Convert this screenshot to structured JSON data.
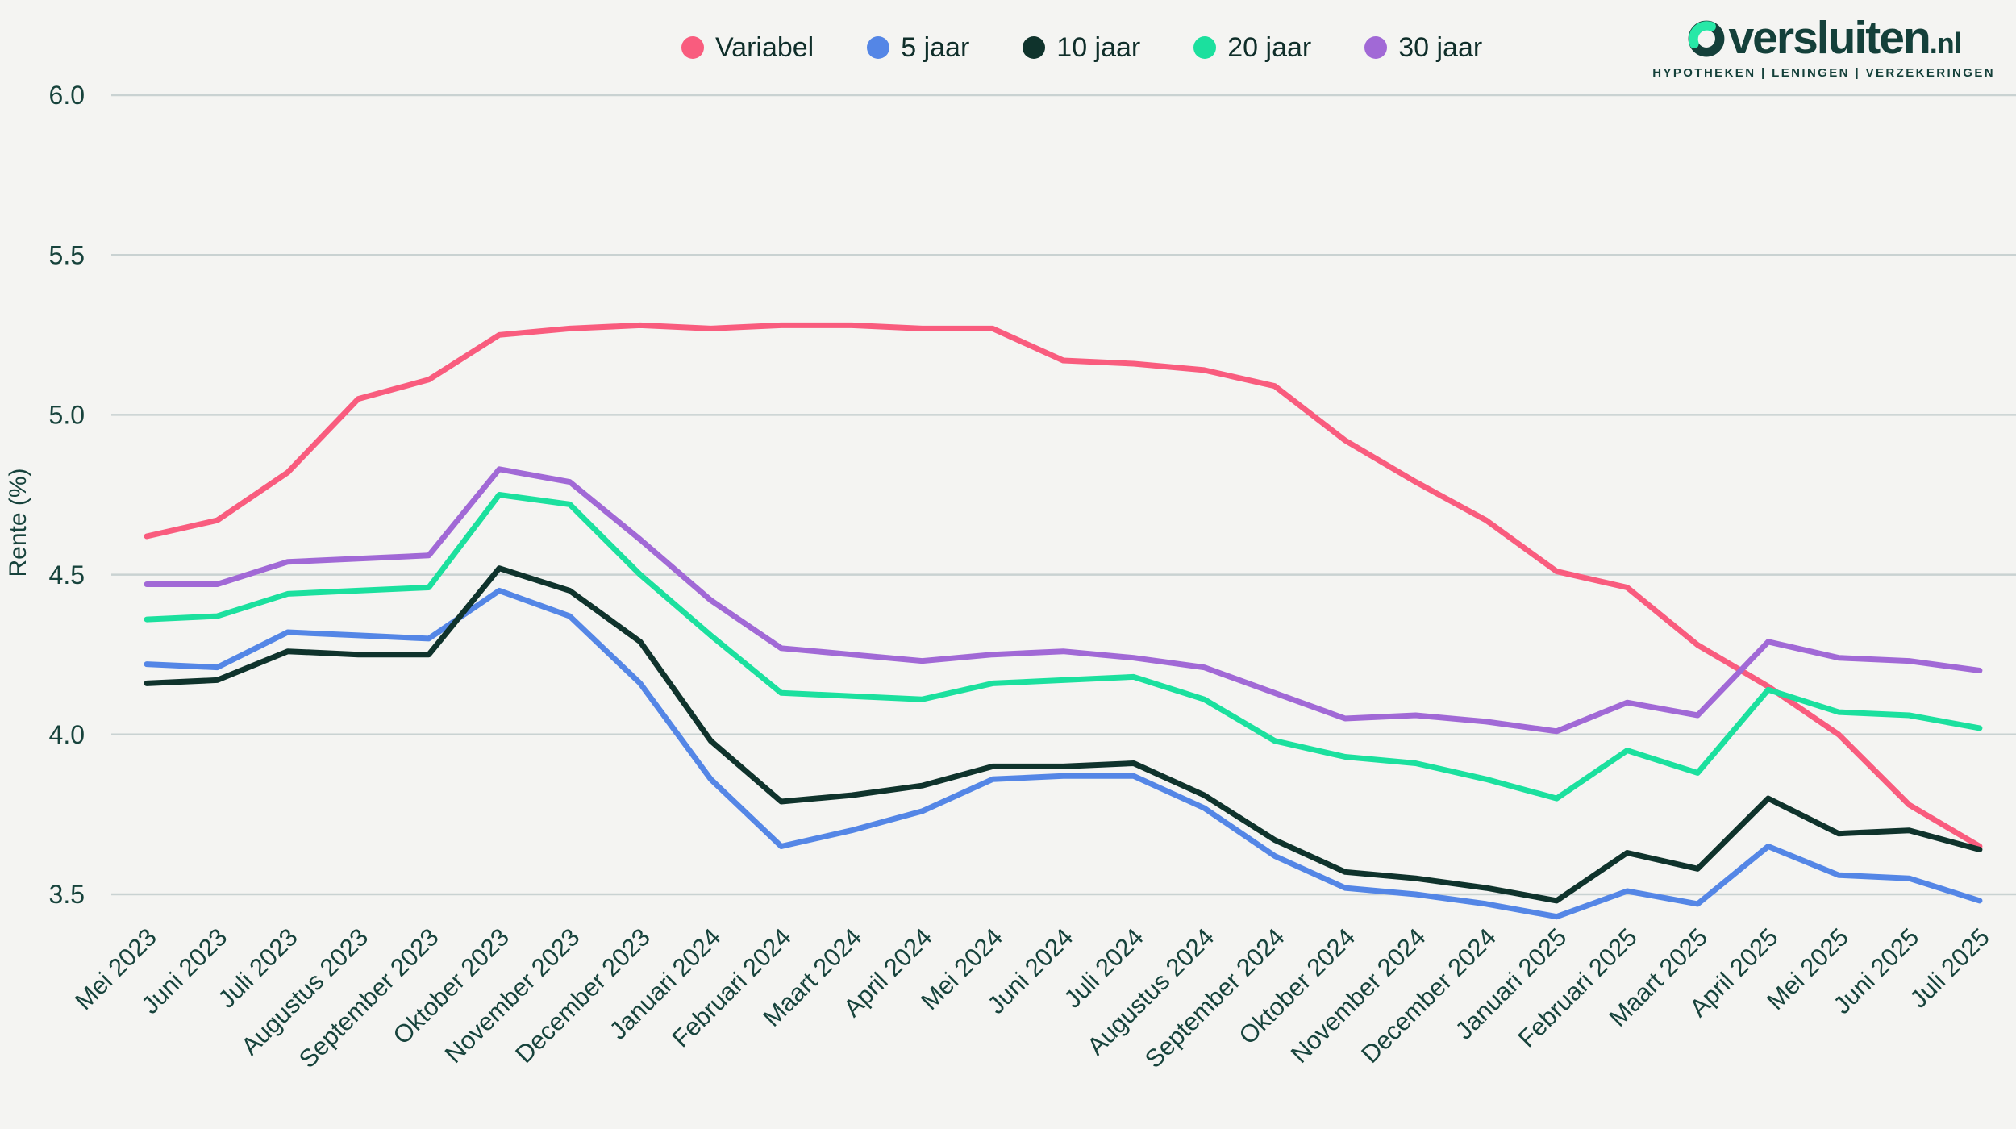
{
  "logo": {
    "brand": "versluiten",
    "tld": ".nl",
    "tagline": "HYPOTHEKEN | LENINGEN | VERZEKERINGEN",
    "mark_dark": "#14403A",
    "mark_green": "#27E8A7"
  },
  "chart_data": {
    "type": "line",
    "title": "",
    "xlabel": "",
    "ylabel": "Rente (%)",
    "ylim": [
      3.3,
      6.05
    ],
    "yticks": [
      "6.0",
      "5.5",
      "5.0",
      "4.5",
      "4.0",
      "3.5"
    ],
    "ytick_values": [
      6.0,
      5.5,
      5.0,
      4.5,
      4.0,
      3.5
    ],
    "grid": true,
    "legend_position": "top-center",
    "background": "#F4F4F2",
    "gridline_color": "#C9D2D2",
    "categories": [
      "Mei 2023",
      "Juni 2023",
      "Juli 2023",
      "Augustus 2023",
      "September 2023",
      "Oktober 2023",
      "November 2023",
      "December 2023",
      "Januari 2024",
      "Februari 2024",
      "Maart 2024",
      "April 2024",
      "Mei 2024",
      "Juni 2024",
      "Juli 2024",
      "Augustus 2024",
      "September 2024",
      "Oktober 2024",
      "November 2024",
      "December 2024",
      "Januari 2025",
      "Februari 2025",
      "Maart 2025",
      "April 2025",
      "Mei 2025",
      "Juni 2025",
      "Juli 2025"
    ],
    "series": [
      {
        "name": "Variabel",
        "color": "#F95C7E",
        "values": [
          4.62,
          4.67,
          4.82,
          5.05,
          5.11,
          5.25,
          5.27,
          5.28,
          5.27,
          5.28,
          5.28,
          5.27,
          5.27,
          5.17,
          5.16,
          5.14,
          5.09,
          4.92,
          4.79,
          4.67,
          4.51,
          4.46,
          4.28,
          4.15,
          4.0,
          3.78,
          3.65
        ]
      },
      {
        "name": "5 jaar",
        "color": "#5486E6",
        "values": [
          4.22,
          4.21,
          4.32,
          4.31,
          4.3,
          4.45,
          4.37,
          4.16,
          3.86,
          3.65,
          3.7,
          3.76,
          3.86,
          3.87,
          3.87,
          3.77,
          3.62,
          3.52,
          3.5,
          3.47,
          3.43,
          3.51,
          3.47,
          3.65,
          3.56,
          3.55,
          3.48
        ]
      },
      {
        "name": "10 jaar",
        "color": "#0F332C",
        "values": [
          4.16,
          4.17,
          4.26,
          4.25,
          4.25,
          4.52,
          4.45,
          4.29,
          3.98,
          3.79,
          3.81,
          3.84,
          3.9,
          3.9,
          3.91,
          3.81,
          3.67,
          3.57,
          3.55,
          3.52,
          3.48,
          3.63,
          3.58,
          3.8,
          3.69,
          3.7,
          3.64
        ]
      },
      {
        "name": "20 jaar",
        "color": "#1BE09E",
        "values": [
          4.36,
          4.37,
          4.44,
          4.45,
          4.46,
          4.75,
          4.72,
          4.5,
          4.31,
          4.13,
          4.12,
          4.11,
          4.16,
          4.17,
          4.18,
          4.11,
          3.98,
          3.93,
          3.91,
          3.86,
          3.8,
          3.95,
          3.88,
          4.14,
          4.07,
          4.06,
          4.02
        ]
      },
      {
        "name": "30 jaar",
        "color": "#A169D6",
        "values": [
          4.47,
          4.47,
          4.54,
          4.55,
          4.56,
          4.83,
          4.79,
          4.61,
          4.42,
          4.27,
          4.25,
          4.23,
          4.25,
          4.26,
          4.24,
          4.21,
          4.13,
          4.05,
          4.06,
          4.04,
          4.01,
          4.1,
          4.06,
          4.29,
          4.24,
          4.23,
          4.2
        ]
      }
    ]
  }
}
